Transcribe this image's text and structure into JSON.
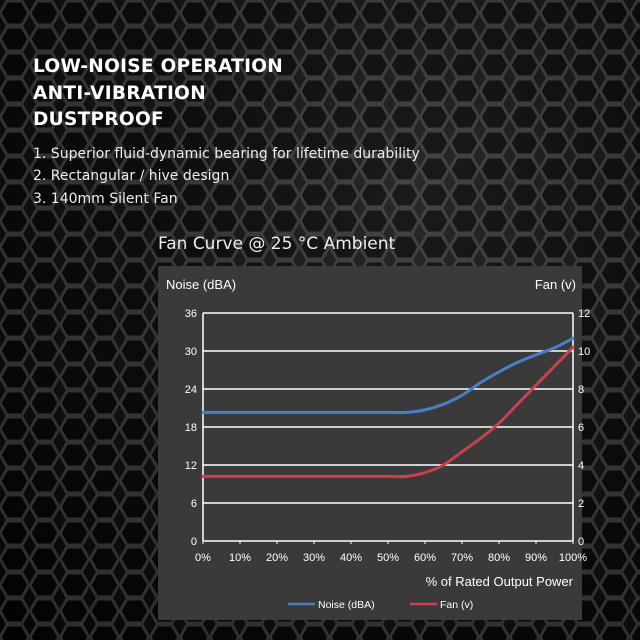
{
  "headlines": [
    "LOW-NOISE OPERATION",
    "ANTI-VIBRATION",
    "DUSTPROOF"
  ],
  "features": [
    "1. Superior fluid-dynamic bearing for lifetime durability",
    "2. Rectangular / hive design",
    "3. 140mm Silent Fan"
  ],
  "chart_data": {
    "type": "line",
    "title": "Fan Curve @ 25 °C Ambient",
    "xlabel": "% of Rated Output Power",
    "ylabel_left": "Noise (dBA)",
    "ylabel_right": "Fan (v)",
    "x": [
      0,
      5,
      10,
      15,
      20,
      25,
      30,
      35,
      40,
      45,
      50,
      55,
      60,
      65,
      70,
      75,
      80,
      85,
      90,
      95,
      100
    ],
    "x_ticks": [
      "0%",
      "10%",
      "20%",
      "30%",
      "40%",
      "50%",
      "60%",
      "70%",
      "80%",
      "90%",
      "100%"
    ],
    "xlim": [
      0,
      100
    ],
    "ylim_left": [
      0,
      36
    ],
    "y_ticks_left": [
      "0",
      "6",
      "12",
      "18",
      "24",
      "30",
      "36"
    ],
    "ylim_right": [
      0,
      12
    ],
    "y_ticks_right": [
      "0",
      "2",
      "4",
      "6",
      "8",
      "10",
      "12"
    ],
    "grid": true,
    "legend_position": "bottom",
    "series": [
      {
        "name": "Noise (dBA)",
        "axis": "left",
        "color": "#4a7fc4",
        "values": [
          20.3,
          20.3,
          20.3,
          20.3,
          20.3,
          20.3,
          20.3,
          20.3,
          20.3,
          20.3,
          20.3,
          20.3,
          20.7,
          21.6,
          23.0,
          25.0,
          26.7,
          28.2,
          29.4,
          30.5,
          32.0
        ]
      },
      {
        "name": "Fan (v)",
        "axis": "right",
        "color": "#c9414b",
        "values": [
          3.4,
          3.4,
          3.4,
          3.4,
          3.4,
          3.4,
          3.4,
          3.4,
          3.4,
          3.4,
          3.4,
          3.4,
          3.6,
          4.0,
          4.7,
          5.4,
          6.2,
          7.2,
          8.2,
          9.2,
          10.2
        ]
      }
    ]
  }
}
